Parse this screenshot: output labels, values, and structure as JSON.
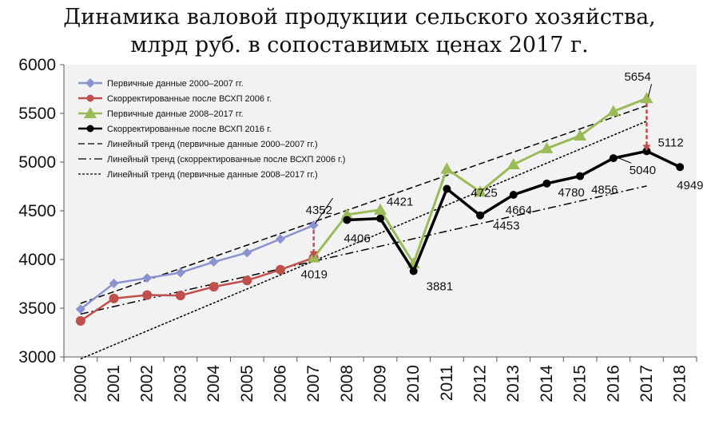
{
  "chart_data": {
    "type": "line",
    "title_line1": "Динамика валовой продукции сельского хозяйства,",
    "title_line2": "млрд руб. в сопоставимых ценах 2017 г.",
    "xlabel": "",
    "ylabel": "",
    "ylim": [
      3000,
      6000
    ],
    "yticks": [
      3000,
      3500,
      4000,
      4500,
      5000,
      5500,
      6000
    ],
    "x_categories": [
      "2000",
      "2001",
      "2002",
      "2003",
      "2004",
      "2005",
      "2006",
      "2007",
      "2008",
      "2009",
      "2010",
      "2011",
      "2012",
      "2013",
      "2014",
      "2015",
      "2016",
      "2017",
      "2018"
    ],
    "grid": false,
    "legend_position": "top-left",
    "series": [
      {
        "name": "Первичные  данные 2000–2007 гг.",
        "color": "#8a93cf",
        "marker": "diamond",
        "x": [
          "2000",
          "2001",
          "2002",
          "2003",
          "2004",
          "2005",
          "2006",
          "2007"
        ],
        "values": [
          3490,
          3755,
          3810,
          3865,
          3975,
          4070,
          4210,
          4352
        ]
      },
      {
        "name": "Скорректированные после ВСХП 2006 г.",
        "color": "#c0504d",
        "marker": "circle",
        "x": [
          "2000",
          "2001",
          "2002",
          "2003",
          "2004",
          "2005",
          "2006",
          "2007"
        ],
        "values": [
          3370,
          3600,
          3635,
          3630,
          3720,
          3785,
          3895,
          4019
        ]
      },
      {
        "name": "Первичные данные 2008–2017 гг.",
        "color": "#9bbb59",
        "marker": "triangle",
        "x": [
          "2007",
          "2008",
          "2009",
          "2010",
          "2011",
          "2012",
          "2013",
          "2014",
          "2015",
          "2016",
          "2017"
        ],
        "values": [
          4019,
          4460,
          4510,
          3960,
          4930,
          4695,
          4975,
          5140,
          5270,
          5520,
          5654
        ]
      },
      {
        "name": "Скорректированные после ВСХП 2016 г.",
        "color": "#000000",
        "marker": "circle",
        "x": [
          "2008",
          "2009",
          "2010",
          "2011",
          "2012",
          "2013",
          "2014",
          "2015",
          "2016",
          "2017",
          "2018"
        ],
        "values": [
          4406,
          4421,
          3881,
          4725,
          4453,
          4664,
          4780,
          4856,
          5040,
          5112,
          4949
        ]
      }
    ],
    "trends": [
      {
        "name": "Линейный тренд  (первичные данные 2000–2007 гг.)",
        "style": "dash",
        "from": [
          "2000",
          3550
        ],
        "to": [
          "2017",
          5580
        ]
      },
      {
        "name": "Линейный тренд  (скорректированные  после ВСХП 2006 г.)",
        "style": "dashdot",
        "from": [
          "2000",
          3440
        ],
        "to": [
          "2017",
          4755
        ]
      },
      {
        "name": "Линейный тренд (первичные данные 2008–2017 гг.)",
        "style": "dot",
        "from": [
          "2000",
          2980
        ],
        "to": [
          "2017",
          5420
        ]
      }
    ],
    "data_labels": [
      {
        "text": "4352",
        "x": "2007",
        "y": 4352
      },
      {
        "text": "4019",
        "x": "2007",
        "y": 4019
      },
      {
        "text": "4406",
        "x": "2008",
        "y": 4406
      },
      {
        "text": "4421",
        "x": "2009",
        "y": 4421
      },
      {
        "text": "3881",
        "x": "2010",
        "y": 3881
      },
      {
        "text": "4725",
        "x": "2011",
        "y": 4725
      },
      {
        "text": "4453",
        "x": "2012",
        "y": 4453
      },
      {
        "text": "4664",
        "x": "2013",
        "y": 4664
      },
      {
        "text": "4780",
        "x": "2014",
        "y": 4780
      },
      {
        "text": "4856",
        "x": "2015",
        "y": 4856
      },
      {
        "text": "5040",
        "x": "2016",
        "y": 5040
      },
      {
        "text": "5654",
        "x": "2017",
        "y": 5654
      },
      {
        "text": "5112",
        "x": "2017",
        "y": 5112
      },
      {
        "text": "4949",
        "x": "2018",
        "y": 4949
      }
    ],
    "revisions": [
      {
        "x": "2007",
        "from": 4352,
        "to": 4019,
        "color": "#c0504d"
      },
      {
        "x": "2017",
        "from": 5654,
        "to": 5112,
        "color": "#c0504d"
      }
    ]
  }
}
